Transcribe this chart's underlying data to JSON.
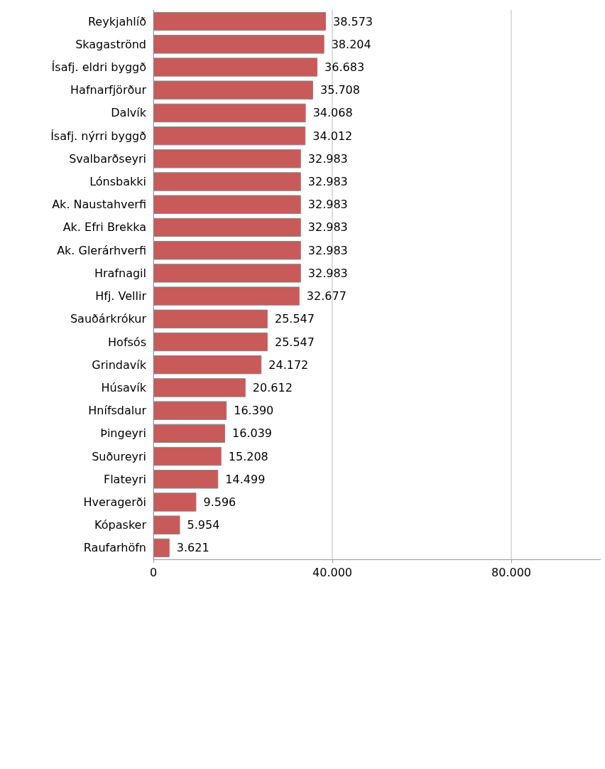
{
  "chart_data": {
    "type": "bar",
    "orientation": "horizontal",
    "categories": [
      "Reykjahlíð",
      "Skagaströnd",
      "Ísafj. eldri byggð",
      "Hafnarfjörður",
      "Dalvík",
      "Ísafj. nýrri byggð",
      "Svalbarðseyri",
      "Lónsbakki",
      "Ak. Naustahverfi",
      "Ak. Efri Brekka",
      "Ak. Glerárhverfi",
      "Hrafnagil",
      "Hfj. Vellir",
      "Sauðárkrókur",
      "Hofsós",
      "Grindavík",
      "Húsavík",
      "Hnífsdalur",
      "Þingeyri",
      "Suðureyri",
      "Flateyri",
      "Hveragerði",
      "Kópasker",
      "Raufarhöfn"
    ],
    "values": [
      38573,
      38204,
      36683,
      35708,
      34068,
      34012,
      32983,
      32983,
      32983,
      32983,
      32983,
      32983,
      32677,
      25547,
      25547,
      24172,
      20612,
      16390,
      16039,
      15208,
      14499,
      9596,
      5954,
      3621
    ],
    "value_labels": [
      "38.573",
      "38.204",
      "36.683",
      "35.708",
      "34.068",
      "34.012",
      "32.983",
      "32.983",
      "32.983",
      "32.983",
      "32.983",
      "32.983",
      "32.677",
      "25.547",
      "25.547",
      "24.172",
      "20.612",
      "16.390",
      "16.039",
      "15.208",
      "14.499",
      "9.596",
      "5.954",
      "3.621"
    ],
    "color": "#c85a5a",
    "xlim": [
      0,
      100000
    ],
    "xticks": [
      0,
      {
        "value": 40000,
        "label": "40.000"
      },
      {
        "value": 80000,
        "label": "80.000"
      }
    ],
    "grid": "x"
  }
}
